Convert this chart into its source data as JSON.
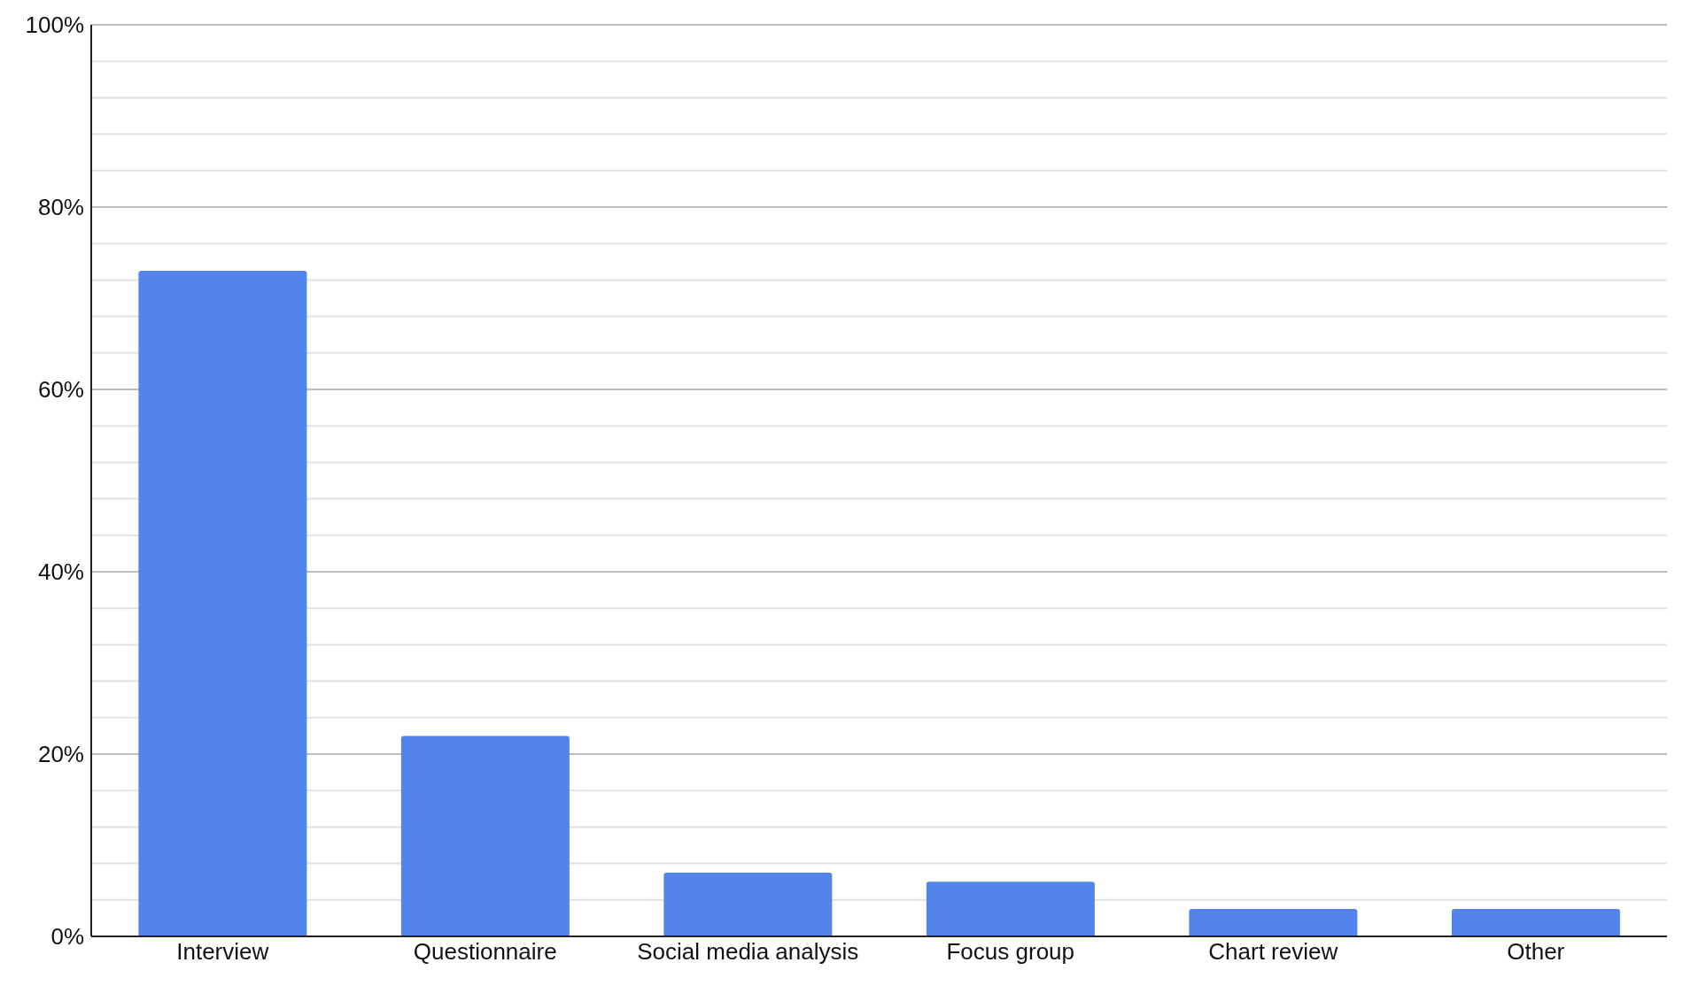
{
  "chart_data": {
    "type": "bar",
    "categories": [
      "Interview",
      "Questionnaire",
      "Social media analysis",
      "Focus group",
      "Chart review",
      "Other"
    ],
    "values": [
      73,
      22,
      7,
      6,
      3,
      3
    ],
    "color": "#5384ec",
    "ylim": [
      0,
      100
    ],
    "yticks": [
      {
        "value": 0,
        "label": "0%"
      },
      {
        "value": 4,
        "label": null
      },
      {
        "value": 8,
        "label": null
      },
      {
        "value": 12,
        "label": null
      },
      {
        "value": 16,
        "label": null
      },
      {
        "value": 20,
        "label": "20%"
      },
      {
        "value": 24,
        "label": null
      },
      {
        "value": 28,
        "label": null
      },
      {
        "value": 32,
        "label": null
      },
      {
        "value": 36,
        "label": null
      },
      {
        "value": 40,
        "label": "40%"
      },
      {
        "value": 44,
        "label": null
      },
      {
        "value": 48,
        "label": null
      },
      {
        "value": 52,
        "label": null
      },
      {
        "value": 56,
        "label": null
      },
      {
        "value": 60,
        "label": "60%"
      },
      {
        "value": 64,
        "label": null
      },
      {
        "value": 68,
        "label": null
      },
      {
        "value": 72,
        "label": null
      },
      {
        "value": 76,
        "label": null
      },
      {
        "value": 80,
        "label": "80%"
      },
      {
        "value": 84,
        "label": null
      },
      {
        "value": 88,
        "label": null
      },
      {
        "value": 92,
        "label": null
      },
      {
        "value": 96,
        "label": null
      },
      {
        "value": 100,
        "label": "100%"
      }
    ],
    "grid": "y",
    "legend": false
  }
}
